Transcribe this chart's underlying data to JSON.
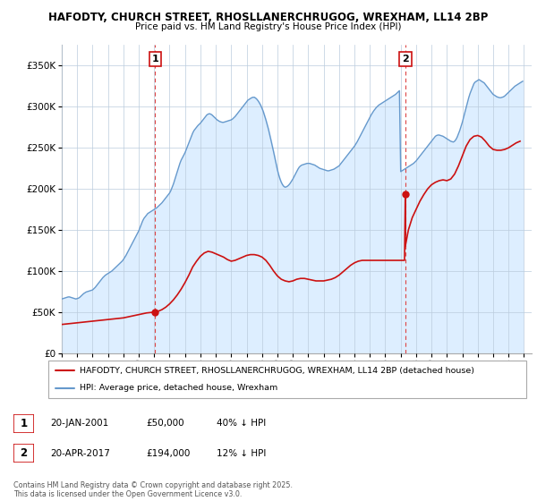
{
  "title1": "HAFODTY, CHURCH STREET, RHOSLLANERCHRUGOG, WREXHAM, LL14 2BP",
  "title2": "Price paid vs. HM Land Registry's House Price Index (HPI)",
  "ytick_values": [
    0,
    50000,
    100000,
    150000,
    200000,
    250000,
    300000,
    350000
  ],
  "ylim": [
    0,
    375000
  ],
  "xlim_start": 1995.0,
  "xlim_end": 2025.5,
  "sale1_x": 2001.054,
  "sale1_y": 50000,
  "sale2_x": 2017.3,
  "sale2_y": 194000,
  "vline_color": "#dd4444",
  "hpi_color": "#6699cc",
  "hpi_fill_color": "#ddeeff",
  "price_color": "#cc1111",
  "legend_label1": "HAFODTY, CHURCH STREET, RHOSLLANERCHRUGOG, WREXHAM, LL14 2BP (detached house)",
  "legend_label2": "HPI: Average price, detached house, Wrexham",
  "note1_label": "1",
  "note1_date": "20-JAN-2001",
  "note1_price": "£50,000",
  "note1_hpi": "40% ↓ HPI",
  "note2_label": "2",
  "note2_date": "20-APR-2017",
  "note2_price": "£194,000",
  "note2_hpi": "12% ↓ HPI",
  "footer": "Contains HM Land Registry data © Crown copyright and database right 2025.\nThis data is licensed under the Open Government Licence v3.0.",
  "hpi_years": [
    1995.0,
    1995.083,
    1995.167,
    1995.25,
    1995.333,
    1995.417,
    1995.5,
    1995.583,
    1995.667,
    1995.75,
    1995.833,
    1995.917,
    1996.0,
    1996.083,
    1996.167,
    1996.25,
    1996.333,
    1996.417,
    1996.5,
    1996.583,
    1996.667,
    1996.75,
    1996.833,
    1996.917,
    1997.0,
    1997.083,
    1997.167,
    1997.25,
    1997.333,
    1997.417,
    1997.5,
    1997.583,
    1997.667,
    1997.75,
    1997.833,
    1997.917,
    1998.0,
    1998.083,
    1998.167,
    1998.25,
    1998.333,
    1998.417,
    1998.5,
    1998.583,
    1998.667,
    1998.75,
    1998.833,
    1998.917,
    1999.0,
    1999.083,
    1999.167,
    1999.25,
    1999.333,
    1999.417,
    1999.5,
    1999.583,
    1999.667,
    1999.75,
    1999.833,
    1999.917,
    2000.0,
    2000.083,
    2000.167,
    2000.25,
    2000.333,
    2000.417,
    2000.5,
    2000.583,
    2000.667,
    2000.75,
    2000.833,
    2000.917,
    2001.0,
    2001.083,
    2001.167,
    2001.25,
    2001.333,
    2001.417,
    2001.5,
    2001.583,
    2001.667,
    2001.75,
    2001.833,
    2001.917,
    2002.0,
    2002.083,
    2002.167,
    2002.25,
    2002.333,
    2002.417,
    2002.5,
    2002.583,
    2002.667,
    2002.75,
    2002.833,
    2002.917,
    2003.0,
    2003.083,
    2003.167,
    2003.25,
    2003.333,
    2003.417,
    2003.5,
    2003.583,
    2003.667,
    2003.75,
    2003.833,
    2003.917,
    2004.0,
    2004.083,
    2004.167,
    2004.25,
    2004.333,
    2004.417,
    2004.5,
    2004.583,
    2004.667,
    2004.75,
    2004.833,
    2004.917,
    2005.0,
    2005.083,
    2005.167,
    2005.25,
    2005.333,
    2005.417,
    2005.5,
    2005.583,
    2005.667,
    2005.75,
    2005.833,
    2005.917,
    2006.0,
    2006.083,
    2006.167,
    2006.25,
    2006.333,
    2006.417,
    2006.5,
    2006.583,
    2006.667,
    2006.75,
    2006.833,
    2006.917,
    2007.0,
    2007.083,
    2007.167,
    2007.25,
    2007.333,
    2007.417,
    2007.5,
    2007.583,
    2007.667,
    2007.75,
    2007.833,
    2007.917,
    2008.0,
    2008.083,
    2008.167,
    2008.25,
    2008.333,
    2008.417,
    2008.5,
    2008.583,
    2008.667,
    2008.75,
    2008.833,
    2008.917,
    2009.0,
    2009.083,
    2009.167,
    2009.25,
    2009.333,
    2009.417,
    2009.5,
    2009.583,
    2009.667,
    2009.75,
    2009.833,
    2009.917,
    2010.0,
    2010.083,
    2010.167,
    2010.25,
    2010.333,
    2010.417,
    2010.5,
    2010.583,
    2010.667,
    2010.75,
    2010.833,
    2010.917,
    2011.0,
    2011.083,
    2011.167,
    2011.25,
    2011.333,
    2011.417,
    2011.5,
    2011.583,
    2011.667,
    2011.75,
    2011.833,
    2011.917,
    2012.0,
    2012.083,
    2012.167,
    2012.25,
    2012.333,
    2012.417,
    2012.5,
    2012.583,
    2012.667,
    2012.75,
    2012.833,
    2012.917,
    2013.0,
    2013.083,
    2013.167,
    2013.25,
    2013.333,
    2013.417,
    2013.5,
    2013.583,
    2013.667,
    2013.75,
    2013.833,
    2013.917,
    2014.0,
    2014.083,
    2014.167,
    2014.25,
    2014.333,
    2014.417,
    2014.5,
    2014.583,
    2014.667,
    2014.75,
    2014.833,
    2014.917,
    2015.0,
    2015.083,
    2015.167,
    2015.25,
    2015.333,
    2015.417,
    2015.5,
    2015.583,
    2015.667,
    2015.75,
    2015.833,
    2015.917,
    2016.0,
    2016.083,
    2016.167,
    2016.25,
    2016.333,
    2016.417,
    2016.5,
    2016.583,
    2016.667,
    2016.75,
    2016.833,
    2016.917,
    2017.0,
    2017.083,
    2017.167,
    2017.25,
    2017.333,
    2017.417,
    2017.5,
    2017.583,
    2017.667,
    2017.75,
    2017.833,
    2017.917,
    2018.0,
    2018.083,
    2018.167,
    2018.25,
    2018.333,
    2018.417,
    2018.5,
    2018.583,
    2018.667,
    2018.75,
    2018.833,
    2018.917,
    2019.0,
    2019.083,
    2019.167,
    2019.25,
    2019.333,
    2019.417,
    2019.5,
    2019.583,
    2019.667,
    2019.75,
    2019.833,
    2019.917,
    2020.0,
    2020.083,
    2020.167,
    2020.25,
    2020.333,
    2020.417,
    2020.5,
    2020.583,
    2020.667,
    2020.75,
    2020.833,
    2020.917,
    2021.0,
    2021.083,
    2021.167,
    2021.25,
    2021.333,
    2021.417,
    2021.5,
    2021.583,
    2021.667,
    2021.75,
    2021.833,
    2021.917,
    2022.0,
    2022.083,
    2022.167,
    2022.25,
    2022.333,
    2022.417,
    2022.5,
    2022.583,
    2022.667,
    2022.75,
    2022.833,
    2022.917,
    2023.0,
    2023.083,
    2023.167,
    2023.25,
    2023.333,
    2023.417,
    2023.5,
    2023.583,
    2023.667,
    2023.75,
    2023.833,
    2023.917,
    2024.0,
    2024.083,
    2024.167,
    2024.25,
    2024.333,
    2024.417,
    2024.5,
    2024.583,
    2024.667,
    2024.75,
    2024.833,
    2024.917
  ],
  "hpi_values": [
    66000,
    66500,
    67000,
    67500,
    68000,
    68500,
    68500,
    68000,
    67500,
    67000,
    66500,
    66000,
    66500,
    67000,
    68000,
    69500,
    71000,
    72500,
    73500,
    74500,
    75000,
    75500,
    76000,
    76500,
    77000,
    78500,
    80000,
    82000,
    84000,
    86000,
    88000,
    90000,
    92000,
    93500,
    95000,
    96000,
    97000,
    98000,
    99000,
    100000,
    101500,
    103000,
    104500,
    106000,
    107500,
    109000,
    110500,
    112000,
    114000,
    116500,
    119000,
    122000,
    125000,
    128000,
    131000,
    134000,
    137000,
    140000,
    143000,
    146000,
    149000,
    153000,
    157000,
    161000,
    164000,
    166000,
    168000,
    170000,
    171000,
    172000,
    173000,
    174000,
    175000,
    176000,
    177000,
    178500,
    180000,
    181500,
    183000,
    185000,
    187000,
    189000,
    191000,
    193000,
    195000,
    198000,
    202000,
    206000,
    211000,
    216000,
    221000,
    226000,
    231000,
    235000,
    238000,
    241000,
    244000,
    248000,
    252000,
    256000,
    260000,
    264000,
    268000,
    271000,
    273000,
    275000,
    277000,
    278500,
    280000,
    282000,
    284000,
    286000,
    288000,
    290000,
    291000,
    291500,
    291000,
    290000,
    288500,
    287000,
    285500,
    284000,
    283000,
    282000,
    281500,
    281000,
    281000,
    281500,
    282000,
    282500,
    283000,
    283500,
    284000,
    285000,
    286500,
    288000,
    290000,
    292000,
    294000,
    296000,
    298000,
    300000,
    302000,
    304000,
    306000,
    308000,
    309000,
    310000,
    311000,
    311500,
    311500,
    310500,
    309000,
    307000,
    304500,
    301500,
    298000,
    294000,
    289000,
    284000,
    278500,
    272500,
    266000,
    259000,
    252000,
    245000,
    237500,
    230000,
    223000,
    217000,
    212000,
    208000,
    205000,
    203000,
    202000,
    202500,
    203500,
    205000,
    207000,
    209500,
    212000,
    215000,
    218000,
    221000,
    224000,
    226500,
    228000,
    229000,
    229500,
    230000,
    230500,
    231000,
    231000,
    231000,
    230500,
    230000,
    229500,
    229000,
    228000,
    227000,
    226000,
    225000,
    224500,
    224000,
    223500,
    223000,
    222500,
    222000,
    222000,
    222500,
    223000,
    223500,
    224000,
    225000,
    226000,
    227000,
    228000,
    230000,
    232000,
    234000,
    236000,
    238000,
    240000,
    242000,
    244000,
    246000,
    248000,
    250000,
    252000,
    254500,
    257000,
    260000,
    263000,
    266000,
    269000,
    272000,
    275000,
    278000,
    281000,
    284000,
    287000,
    290000,
    292500,
    295000,
    297000,
    299000,
    300500,
    302000,
    303000,
    304000,
    305000,
    306000,
    307000,
    308000,
    309000,
    310000,
    311000,
    312000,
    313000,
    314000,
    315000,
    316500,
    318000,
    319500,
    221000,
    222000,
    223000,
    224000,
    225000,
    226000,
    227000,
    228000,
    229000,
    230000,
    231000,
    232500,
    234000,
    236000,
    238000,
    240000,
    242000,
    244000,
    246000,
    248000,
    250000,
    252000,
    254000,
    256000,
    258000,
    260000,
    262000,
    264000,
    265000,
    265500,
    265500,
    265000,
    264500,
    264000,
    263000,
    262000,
    261000,
    260000,
    259000,
    258000,
    257500,
    257000,
    258000,
    260000,
    263000,
    267000,
    271000,
    276000,
    281000,
    287000,
    293000,
    299000,
    305000,
    311000,
    316000,
    320000,
    324000,
    328000,
    330000,
    331000,
    332000,
    333000,
    332000,
    331000,
    330000,
    329000,
    327000,
    325000,
    323000,
    321000,
    319000,
    317000,
    315000,
    314000,
    313000,
    312000,
    311500,
    311000,
    311000,
    311500,
    312000,
    313000,
    314500,
    316000,
    317500,
    319000,
    320500,
    322000,
    323500,
    325000,
    326000,
    327000,
    328000,
    329000,
    330000,
    331000
  ],
  "price_years": [
    1995.0,
    1995.25,
    1995.5,
    1995.75,
    1996.0,
    1996.25,
    1996.5,
    1996.75,
    1997.0,
    1997.25,
    1997.5,
    1997.75,
    1998.0,
    1998.25,
    1998.5,
    1998.75,
    1999.0,
    1999.25,
    1999.5,
    1999.75,
    2000.0,
    2000.25,
    2000.5,
    2000.75,
    2001.054,
    2001.25,
    2001.5,
    2001.75,
    2002.0,
    2002.25,
    2002.5,
    2002.75,
    2003.0,
    2003.25,
    2003.5,
    2003.75,
    2004.0,
    2004.25,
    2004.5,
    2004.75,
    2005.0,
    2005.25,
    2005.5,
    2005.75,
    2006.0,
    2006.25,
    2006.5,
    2006.75,
    2007.0,
    2007.25,
    2007.5,
    2007.75,
    2008.0,
    2008.25,
    2008.5,
    2008.75,
    2009.0,
    2009.25,
    2009.5,
    2009.75,
    2010.0,
    2010.25,
    2010.5,
    2010.75,
    2011.0,
    2011.25,
    2011.5,
    2011.75,
    2012.0,
    2012.25,
    2012.5,
    2012.75,
    2013.0,
    2013.25,
    2013.5,
    2013.75,
    2014.0,
    2014.25,
    2014.5,
    2014.75,
    2015.0,
    2015.25,
    2015.5,
    2015.75,
    2016.0,
    2016.25,
    2016.5,
    2016.75,
    2017.0,
    2017.083,
    2017.167,
    2017.25,
    2017.3,
    2017.3,
    2017.5,
    2017.75,
    2018.0,
    2018.25,
    2018.5,
    2018.75,
    2019.0,
    2019.25,
    2019.5,
    2019.75,
    2020.0,
    2020.25,
    2020.5,
    2020.75,
    2021.0,
    2021.25,
    2021.5,
    2021.75,
    2022.0,
    2022.25,
    2022.5,
    2022.75,
    2023.0,
    2023.25,
    2023.5,
    2023.75,
    2024.0,
    2024.25,
    2024.5,
    2024.75
  ],
  "price_values": [
    35000,
    35500,
    36000,
    36500,
    37000,
    37500,
    38000,
    38500,
    39000,
    39500,
    40000,
    40500,
    41000,
    41500,
    42000,
    42500,
    43000,
    44000,
    45000,
    46000,
    47000,
    48000,
    49000,
    49500,
    50000,
    51000,
    53000,
    56000,
    60000,
    65000,
    71000,
    78000,
    86000,
    95000,
    105000,
    112000,
    118000,
    122000,
    124000,
    123000,
    121000,
    119000,
    117000,
    114000,
    112000,
    113000,
    115000,
    117000,
    119000,
    120000,
    120000,
    119000,
    117000,
    113000,
    107000,
    100000,
    94000,
    90000,
    88000,
    87000,
    88000,
    90000,
    91000,
    91000,
    90000,
    89000,
    88000,
    88000,
    88000,
    89000,
    90000,
    92000,
    95000,
    99000,
    103000,
    107000,
    110000,
    112000,
    113000,
    113000,
    113000,
    113000,
    113000,
    113000,
    113000,
    113000,
    113000,
    113000,
    113000,
    113000,
    113000,
    113000,
    194000,
    130000,
    150000,
    165000,
    175000,
    185000,
    193000,
    200000,
    205000,
    208000,
    210000,
    211000,
    210000,
    212000,
    218000,
    228000,
    240000,
    252000,
    260000,
    264000,
    265000,
    263000,
    258000,
    252000,
    248000,
    247000,
    247000,
    248000,
    250000,
    253000,
    256000,
    258000
  ]
}
